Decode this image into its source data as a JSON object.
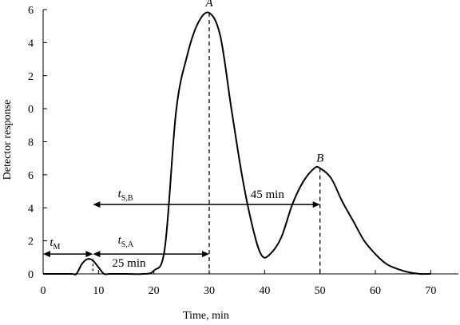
{
  "chart_data": {
    "type": "line",
    "title": "",
    "xlabel": "Time, min",
    "ylabel": "Detector response",
    "xlim": [
      0,
      75
    ],
    "ylim": [
      0,
      8
    ],
    "x_ticks": [
      0,
      10,
      20,
      30,
      40,
      50,
      60,
      70
    ],
    "x_tick_labels": [
      "0",
      "10",
      "20",
      "30",
      "40",
      "50",
      "60",
      "70"
    ],
    "y_ticks": [
      0,
      1,
      2,
      3,
      4,
      5,
      6,
      7,
      8
    ],
    "y_tick_labels": [
      "0",
      "2",
      "4",
      "6",
      "8",
      "0",
      "2",
      "4",
      "6"
    ],
    "grid": false,
    "series": [
      {
        "x": [
          0,
          5,
          6,
          7,
          8,
          9,
          10,
          11,
          12,
          15,
          18,
          20,
          22,
          24,
          26,
          28,
          30,
          32,
          34,
          36,
          38,
          39.5,
          41,
          43,
          45,
          47,
          49,
          50,
          52,
          54,
          56,
          58,
          60,
          62,
          64,
          66,
          68,
          70
        ],
        "y": [
          0,
          0,
          0,
          0.3,
          0.45,
          0.4,
          0.2,
          0,
          0,
          0,
          0,
          0.1,
          0.8,
          4.9,
          6.6,
          7.6,
          7.9,
          7.2,
          5.0,
          2.9,
          1.3,
          0.55,
          0.6,
          1.1,
          2.1,
          2.8,
          3.2,
          3.2,
          2.9,
          2.2,
          1.6,
          1.0,
          0.6,
          0.3,
          0.15,
          0.05,
          0,
          0
        ]
      }
    ],
    "annotations": {
      "peak_a_label": "A",
      "peak_b_label": "B",
      "tm_main": "t",
      "tm_sub": "M",
      "tsb_main": "t",
      "tsb_sub": "S,B",
      "tsa_main": "t",
      "tsa_sub": "S,A",
      "t45_label": "45 min",
      "t25_label": "25 min"
    }
  }
}
